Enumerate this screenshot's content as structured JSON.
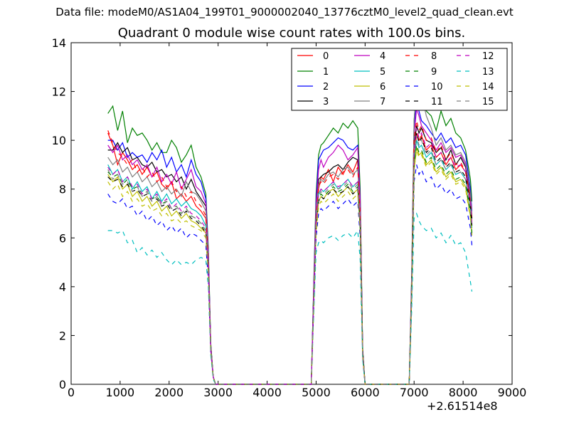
{
  "suptitle": "Data file: modeM0/AS1A04_199T01_9000002040_13776cztM0_level2_quad_clean.evt",
  "chart_data": {
    "type": "line",
    "title": "Quadrant 0 module wise count rates with 100.0s bins.",
    "xlabel": "",
    "ylabel": "",
    "x_offset_label": "+2.61514e8",
    "xlim": [
      0,
      9000
    ],
    "ylim": [
      0,
      14
    ],
    "xticks": [
      0,
      1000,
      2000,
      3000,
      4000,
      5000,
      6000,
      7000,
      8000,
      9000
    ],
    "yticks": [
      0,
      2,
      4,
      6,
      8,
      10,
      12,
      14
    ],
    "x": [
      750,
      850,
      950,
      1050,
      1150,
      1250,
      1350,
      1450,
      1550,
      1650,
      1750,
      1850,
      1950,
      2050,
      2150,
      2250,
      2350,
      2450,
      2550,
      2650,
      2750,
      2800,
      2850,
      2900,
      2950,
      3000,
      3500,
      4000,
      4500,
      4900,
      4950,
      5000,
      5050,
      5100,
      5150,
      5250,
      5350,
      5450,
      5550,
      5650,
      5750,
      5850,
      5900,
      5950,
      6000,
      6050,
      6100,
      6500,
      6900,
      6950,
      7000,
      7050,
      7100,
      7150,
      7250,
      7350,
      7450,
      7550,
      7650,
      7750,
      7850,
      7950,
      8050,
      8150,
      8180
    ],
    "series": [
      {
        "name": "0",
        "color": "#ff0000",
        "dash": "solid",
        "values": [
          10.3,
          9.8,
          9.0,
          9.5,
          9.2,
          8.8,
          9.0,
          8.6,
          8.9,
          8.5,
          8.7,
          8.2,
          8.0,
          8.3,
          7.6,
          7.8,
          7.5,
          7.7,
          7.3,
          7.1,
          6.8,
          5.0,
          1.5,
          0.3,
          0,
          0,
          0,
          0,
          0,
          0,
          3.5,
          6.5,
          8.0,
          8.5,
          8.4,
          8.8,
          8.3,
          8.9,
          8.6,
          9.0,
          8.7,
          9.2,
          7.0,
          1.3,
          0,
          0,
          0,
          0,
          0,
          3.8,
          9.0,
          10.3,
          10.0,
          10.2,
          9.6,
          9.8,
          9.3,
          9.5,
          9.0,
          9.3,
          8.8,
          9.0,
          8.7,
          7.5,
          6.6
        ]
      },
      {
        "name": "1",
        "color": "#008000",
        "dash": "solid",
        "values": [
          11.1,
          11.4,
          10.4,
          11.2,
          9.9,
          10.5,
          10.2,
          10.3,
          10.0,
          9.6,
          9.9,
          9.5,
          9.5,
          10.0,
          9.7,
          9.1,
          9.4,
          9.8,
          8.9,
          8.5,
          7.8,
          5.6,
          1.7,
          0.3,
          0,
          0,
          0,
          0,
          0,
          0,
          4.0,
          7.8,
          9.4,
          9.8,
          9.9,
          10.2,
          10.5,
          10.3,
          10.7,
          10.5,
          10.8,
          10.5,
          8.0,
          1.5,
          0,
          0,
          0,
          0,
          0,
          4.5,
          10.8,
          12.2,
          11.8,
          11.9,
          11.2,
          11.0,
          10.4,
          11.2,
          10.6,
          10.9,
          10.3,
          10.1,
          9.6,
          8.4,
          7.5
        ]
      },
      {
        "name": "2",
        "color": "#0000ff",
        "dash": "solid",
        "values": [
          10.0,
          10.0,
          9.6,
          9.9,
          9.3,
          9.5,
          9.3,
          9.4,
          9.1,
          9.5,
          9.2,
          9.6,
          8.9,
          9.3,
          8.7,
          9.0,
          8.5,
          9.2,
          8.6,
          8.3,
          7.6,
          5.4,
          1.6,
          0.3,
          0,
          0,
          0,
          0,
          0,
          0,
          3.9,
          7.5,
          9.2,
          9.4,
          9.6,
          9.7,
          9.9,
          10.1,
          10.0,
          9.7,
          9.6,
          9.8,
          7.6,
          1.4,
          0,
          0,
          0,
          0,
          0,
          4.3,
          10.5,
          11.7,
          11.2,
          10.8,
          10.6,
          10.3,
          10.0,
          10.3,
          9.9,
          10.1,
          9.7,
          9.8,
          9.4,
          8.0,
          7.1
        ]
      },
      {
        "name": "3",
        "color": "#000000",
        "dash": "solid",
        "values": [
          9.6,
          9.6,
          9.9,
          9.5,
          9.7,
          9.2,
          9.3,
          9.0,
          8.9,
          9.1,
          8.7,
          8.8,
          8.5,
          8.6,
          8.3,
          8.5,
          8.0,
          8.4,
          7.9,
          7.6,
          7.3,
          5.2,
          1.6,
          0.3,
          0,
          0,
          0,
          0,
          0,
          0,
          3.7,
          7.1,
          8.4,
          8.5,
          8.6,
          8.7,
          8.9,
          9.0,
          8.8,
          9.1,
          9.3,
          9.2,
          7.3,
          1.4,
          0,
          0,
          0,
          0,
          0,
          4.0,
          9.8,
          10.6,
          10.3,
          10.5,
          10.0,
          9.9,
          9.5,
          9.7,
          9.2,
          9.6,
          9.0,
          9.3,
          8.9,
          7.7,
          6.8
        ]
      },
      {
        "name": "4",
        "color": "#bf00bf",
        "dash": "solid",
        "values": [
          9.8,
          9.5,
          9.8,
          9.2,
          9.4,
          9.0,
          9.2,
          8.8,
          9.0,
          8.5,
          8.9,
          8.3,
          8.6,
          8.2,
          8.7,
          8.0,
          8.4,
          8.8,
          8.1,
          7.9,
          7.4,
          5.3,
          1.6,
          0.3,
          0,
          0,
          0,
          0,
          0,
          0,
          3.8,
          7.3,
          8.8,
          9.2,
          8.9,
          9.3,
          9.5,
          9.8,
          9.6,
          9.2,
          9.4,
          9.7,
          7.5,
          1.4,
          0,
          0,
          0,
          0,
          0,
          4.2,
          10.2,
          11.3,
          11.0,
          10.6,
          10.3,
          10.0,
          9.6,
          9.9,
          9.5,
          9.7,
          9.3,
          9.4,
          9.0,
          7.8,
          6.9
        ]
      },
      {
        "name": "5",
        "color": "#00bfbf",
        "dash": "solid",
        "values": [
          9.0,
          8.6,
          8.8,
          8.3,
          8.5,
          8.0,
          8.3,
          7.9,
          8.1,
          7.6,
          7.9,
          7.5,
          7.8,
          7.4,
          7.6,
          7.3,
          7.5,
          7.2,
          7.1,
          6.9,
          6.5,
          4.8,
          1.5,
          0.3,
          0,
          0,
          0,
          0,
          0,
          0,
          3.4,
          6.6,
          7.8,
          8.0,
          7.9,
          8.1,
          8.3,
          8.0,
          8.2,
          8.4,
          8.1,
          8.3,
          6.6,
          1.3,
          0,
          0,
          0,
          0,
          0,
          3.7,
          9.1,
          10.0,
          9.7,
          9.8,
          9.3,
          9.5,
          9.0,
          9.2,
          8.8,
          9.0,
          8.6,
          8.7,
          8.4,
          7.2,
          6.4
        ]
      },
      {
        "name": "6",
        "color": "#bfbf00",
        "dash": "solid",
        "values": [
          8.6,
          8.3,
          8.5,
          8.0,
          8.2,
          7.7,
          7.9,
          7.5,
          7.7,
          7.3,
          7.5,
          7.1,
          7.3,
          6.9,
          7.1,
          6.8,
          7.0,
          6.7,
          6.6,
          6.4,
          6.2,
          4.6,
          1.4,
          0.3,
          0,
          0,
          0,
          0,
          0,
          0,
          3.2,
          6.3,
          7.5,
          7.7,
          7.6,
          7.9,
          8.0,
          7.7,
          7.9,
          8.1,
          7.8,
          8.0,
          6.4,
          1.2,
          0,
          0,
          0,
          0,
          0,
          3.6,
          8.8,
          9.7,
          9.4,
          9.5,
          9.0,
          9.2,
          8.7,
          8.9,
          8.5,
          8.7,
          8.3,
          8.4,
          8.1,
          6.9,
          6.1
        ]
      },
      {
        "name": "7",
        "color": "#808080",
        "dash": "solid",
        "values": [
          9.3,
          9.0,
          9.2,
          8.7,
          8.9,
          8.5,
          8.7,
          8.3,
          8.5,
          8.1,
          8.3,
          7.9,
          8.1,
          7.8,
          8.0,
          7.7,
          8.3,
          7.9,
          7.8,
          7.5,
          7.1,
          5.1,
          1.5,
          0.3,
          0,
          0,
          0,
          0,
          0,
          0,
          3.6,
          7.0,
          8.2,
          8.4,
          8.3,
          8.6,
          8.7,
          8.5,
          8.8,
          8.9,
          8.6,
          8.8,
          7.0,
          1.3,
          0,
          0,
          0,
          0,
          0,
          4.1,
          10.8,
          12.2,
          12.0,
          11.9,
          11.0,
          10.5,
          9.8,
          10.1,
          9.6,
          9.8,
          9.4,
          9.5,
          9.1,
          7.8,
          6.9
        ]
      },
      {
        "name": "8",
        "color": "#ff0000",
        "dash": "dashed",
        "values": [
          10.4,
          9.9,
          9.5,
          9.3,
          9.0,
          9.2,
          8.7,
          8.9,
          8.5,
          8.7,
          8.3,
          8.5,
          8.1,
          8.3,
          7.9,
          8.1,
          7.7,
          7.9,
          7.5,
          7.3,
          6.9,
          5.0,
          1.5,
          0.3,
          0,
          0,
          0,
          0,
          0,
          0,
          3.5,
          6.8,
          8.1,
          8.3,
          8.2,
          8.5,
          8.6,
          8.4,
          8.7,
          8.8,
          8.5,
          8.9,
          7.0,
          1.3,
          0,
          0,
          0,
          0,
          0,
          4.0,
          10.0,
          10.8,
          10.4,
          10.6,
          10.0,
          10.1,
          9.5,
          9.8,
          9.2,
          9.5,
          9.0,
          9.1,
          8.7,
          7.5,
          6.7
        ]
      },
      {
        "name": "9",
        "color": "#008000",
        "dash": "dashed",
        "values": [
          8.7,
          8.5,
          8.6,
          8.2,
          8.4,
          8.0,
          8.1,
          7.8,
          7.9,
          7.6,
          7.7,
          7.4,
          7.5,
          7.2,
          7.3,
          7.0,
          7.2,
          6.9,
          6.8,
          6.6,
          6.3,
          4.7,
          1.4,
          0.3,
          0,
          0,
          0,
          0,
          0,
          0,
          3.3,
          6.5,
          7.6,
          7.8,
          7.7,
          7.9,
          8.1,
          7.9,
          8.0,
          8.2,
          7.9,
          8.1,
          6.5,
          1.2,
          0,
          0,
          0,
          0,
          0,
          3.7,
          9.0,
          9.8,
          9.5,
          9.6,
          9.1,
          9.3,
          8.8,
          9.0,
          8.6,
          8.8,
          8.4,
          8.5,
          8.2,
          7.0,
          6.2
        ]
      },
      {
        "name": "10",
        "color": "#0000ff",
        "dash": "dashed",
        "values": [
          7.8,
          7.5,
          7.4,
          7.6,
          7.2,
          7.3,
          6.9,
          7.1,
          6.7,
          6.9,
          6.5,
          6.7,
          6.3,
          6.5,
          6.2,
          6.4,
          6.0,
          6.2,
          6.1,
          5.9,
          5.7,
          4.3,
          1.3,
          0.3,
          0,
          0,
          0,
          0,
          0,
          0,
          3.0,
          6.0,
          7.0,
          7.2,
          7.1,
          7.3,
          7.5,
          7.2,
          7.4,
          7.6,
          7.3,
          7.5,
          6.0,
          1.1,
          0,
          0,
          0,
          0,
          0,
          3.4,
          8.3,
          9.0,
          8.6,
          8.8,
          8.3,
          8.5,
          8.0,
          8.2,
          7.8,
          8.0,
          7.6,
          7.7,
          7.4,
          6.4,
          5.7
        ]
      },
      {
        "name": "11",
        "color": "#000000",
        "dash": "dashed",
        "values": [
          8.5,
          8.3,
          8.4,
          8.1,
          8.2,
          7.9,
          8.0,
          7.7,
          7.8,
          7.5,
          7.6,
          7.3,
          7.4,
          7.1,
          7.2,
          6.9,
          7.1,
          6.8,
          6.7,
          6.5,
          6.2,
          4.6,
          1.4,
          0.3,
          0,
          0,
          0,
          0,
          0,
          0,
          3.3,
          6.4,
          7.5,
          7.7,
          7.6,
          7.8,
          8.0,
          7.8,
          7.9,
          8.1,
          7.8,
          8.0,
          6.4,
          1.2,
          0,
          0,
          0,
          0,
          0,
          3.7,
          9.2,
          10.3,
          9.9,
          10.1,
          9.5,
          9.7,
          9.1,
          9.3,
          8.9,
          9.1,
          8.7,
          8.8,
          8.5,
          7.3,
          6.5
        ]
      },
      {
        "name": "12",
        "color": "#bf00bf",
        "dash": "dashed",
        "values": [
          8.9,
          8.6,
          8.8,
          8.3,
          8.5,
          8.1,
          8.2,
          7.8,
          8.0,
          7.6,
          7.8,
          7.4,
          7.6,
          7.2,
          7.4,
          7.1,
          7.3,
          7.0,
          6.9,
          6.7,
          6.4,
          4.8,
          1.4,
          0.3,
          0,
          0,
          0,
          0,
          0,
          0,
          3.4,
          6.6,
          7.8,
          8.0,
          7.9,
          8.1,
          8.3,
          8.1,
          8.2,
          8.4,
          8.1,
          8.3,
          6.6,
          1.2,
          0,
          0,
          0,
          0,
          0,
          3.8,
          9.4,
          10.5,
          10.1,
          10.3,
          9.7,
          9.9,
          9.3,
          9.5,
          9.1,
          9.3,
          8.9,
          9.0,
          8.7,
          7.5,
          6.6
        ]
      },
      {
        "name": "13",
        "color": "#00bfbf",
        "dash": "dashed",
        "values": [
          6.3,
          6.3,
          6.2,
          6.3,
          5.8,
          5.9,
          5.4,
          5.6,
          5.3,
          5.5,
          5.2,
          5.4,
          5.1,
          4.9,
          5.1,
          4.9,
          5.0,
          4.9,
          5.1,
          5.2,
          5.1,
          4.0,
          1.2,
          0.2,
          0,
          0,
          0,
          0,
          0,
          0,
          2.8,
          5.4,
          5.8,
          5.9,
          5.8,
          6.0,
          6.1,
          5.9,
          6.1,
          6.2,
          6.0,
          6.3,
          5.1,
          1.0,
          0,
          0,
          0,
          0,
          0,
          3.0,
          6.8,
          7.0,
          6.7,
          6.5,
          6.3,
          6.4,
          6.0,
          6.2,
          5.8,
          6.1,
          5.7,
          5.8,
          5.4,
          4.2,
          3.8
        ]
      },
      {
        "name": "14",
        "color": "#bfbf00",
        "dash": "dashed",
        "values": [
          8.3,
          8.0,
          8.2,
          7.7,
          7.9,
          7.5,
          7.6,
          7.3,
          7.4,
          7.1,
          7.2,
          6.9,
          7.0,
          6.7,
          6.8,
          6.6,
          6.7,
          6.5,
          6.4,
          6.3,
          6.0,
          4.5,
          1.4,
          0.3,
          0,
          0,
          0,
          0,
          0,
          0,
          3.2,
          6.2,
          7.3,
          7.5,
          7.4,
          7.6,
          7.8,
          7.5,
          7.7,
          7.9,
          7.6,
          7.8,
          6.3,
          1.2,
          0,
          0,
          0,
          0,
          0,
          3.6,
          8.8,
          9.6,
          9.3,
          9.4,
          8.9,
          9.1,
          8.6,
          8.8,
          8.4,
          8.6,
          8.2,
          8.3,
          8.0,
          6.8,
          6.1
        ]
      },
      {
        "name": "15",
        "color": "#808080",
        "dash": "dashed",
        "values": [
          8.8,
          8.4,
          8.6,
          8.2,
          8.3,
          7.9,
          8.1,
          7.7,
          7.9,
          7.5,
          7.7,
          7.3,
          7.5,
          7.2,
          7.3,
          7.0,
          7.2,
          6.9,
          6.8,
          6.6,
          6.3,
          4.7,
          1.4,
          0.3,
          0,
          0,
          0,
          0,
          0,
          0,
          3.4,
          6.5,
          7.7,
          7.9,
          7.8,
          8.0,
          8.2,
          8.0,
          8.1,
          8.3,
          8.0,
          8.2,
          6.5,
          1.2,
          0,
          0,
          0,
          0,
          0,
          3.8,
          9.3,
          10.2,
          9.8,
          10.0,
          9.4,
          9.6,
          9.0,
          9.2,
          8.8,
          9.0,
          8.6,
          8.7,
          8.4,
          7.2,
          6.4
        ]
      }
    ],
    "legend": {
      "position": "top-right",
      "columns": 4
    }
  }
}
